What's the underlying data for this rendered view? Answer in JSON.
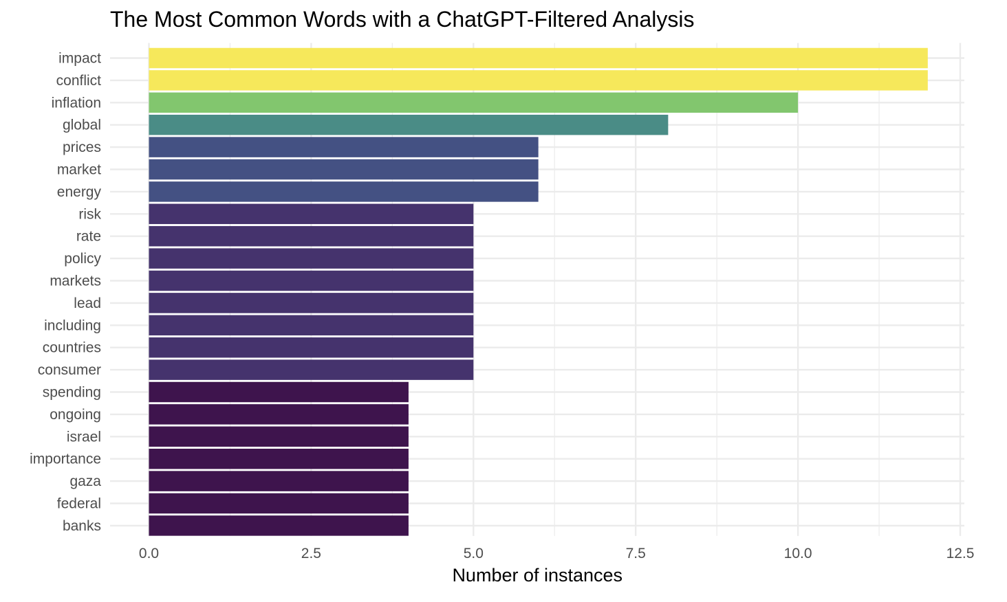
{
  "chart_data": {
    "type": "bar",
    "orientation": "horizontal",
    "title": "The Most Common Words with a ChatGPT-Filtered Analysis",
    "xlabel": "Number of instances",
    "ylabel": "",
    "xlim": [
      0,
      12.5
    ],
    "xticks": [
      "0.0",
      "2.5",
      "5.0",
      "7.5",
      "10.0",
      "12.5"
    ],
    "xtick_values": [
      0,
      2.5,
      5,
      7.5,
      10,
      12.5
    ],
    "grid": true,
    "legend": "none",
    "categories": [
      "impact",
      "conflict",
      "inflation",
      "global",
      "prices",
      "market",
      "energy",
      "risk",
      "rate",
      "policy",
      "markets",
      "lead",
      "including",
      "countries",
      "consumer",
      "spending",
      "ongoing",
      "israel",
      "importance",
      "gaza",
      "federal",
      "banks"
    ],
    "values": [
      12,
      12,
      10,
      8,
      6,
      6,
      6,
      5,
      5,
      5,
      5,
      5,
      5,
      5,
      5,
      4,
      4,
      4,
      4,
      4,
      4,
      4
    ],
    "colors": {
      "12": "#f6e85b",
      "10": "#82c66e",
      "8": "#4a8c86",
      "6": "#445183",
      "5": "#45336d",
      "4": "#3e144d"
    },
    "gridline_color": "#ebebeb"
  }
}
